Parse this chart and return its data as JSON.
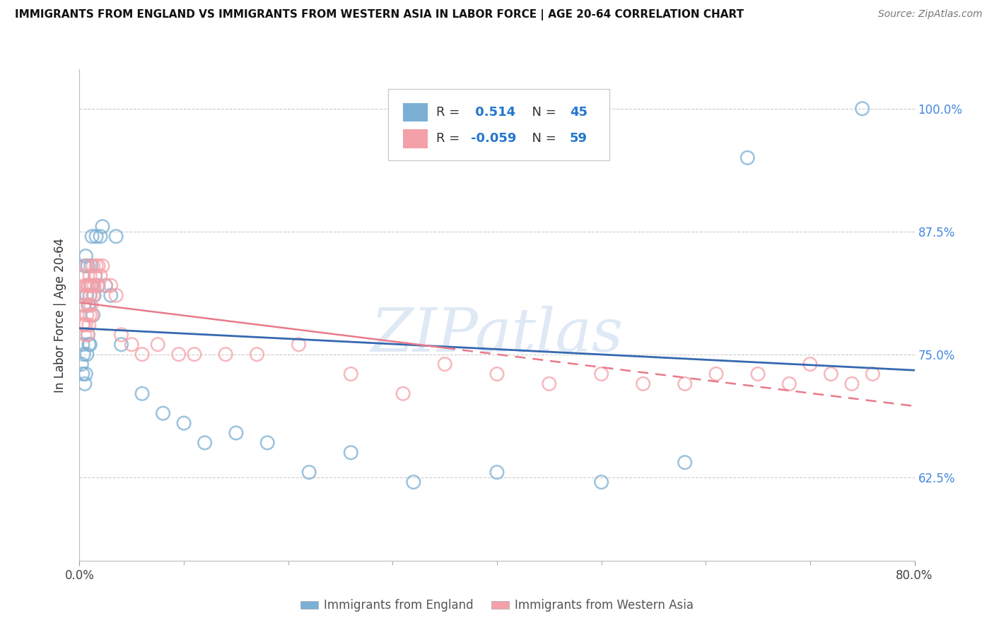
{
  "title": "IMMIGRANTS FROM ENGLAND VS IMMIGRANTS FROM WESTERN ASIA IN LABOR FORCE | AGE 20-64 CORRELATION CHART",
  "source": "Source: ZipAtlas.com",
  "ylabel": "In Labor Force | Age 20-64",
  "ytick_vals": [
    0.625,
    0.75,
    0.875,
    1.0
  ],
  "ytick_labels": [
    "62.5%",
    "75.0%",
    "87.5%",
    "100.0%"
  ],
  "england_color": "#7BAFD4",
  "western_color": "#F4A0A8",
  "england_line_color": "#3568B0",
  "western_line_color": "#E87A8A",
  "watermark": "ZIPatlas",
  "xmin": 0.0,
  "xmax": 0.8,
  "ymin": 0.54,
  "ymax": 1.04,
  "eng_x": [
    0.002,
    0.003,
    0.003,
    0.004,
    0.004,
    0.005,
    0.005,
    0.006,
    0.006,
    0.007,
    0.007,
    0.008,
    0.008,
    0.009,
    0.009,
    0.01,
    0.01,
    0.011,
    0.011,
    0.012,
    0.013,
    0.014,
    0.015,
    0.016,
    0.018,
    0.02,
    0.022,
    0.025,
    0.03,
    0.035,
    0.04,
    0.06,
    0.08,
    0.1,
    0.12,
    0.15,
    0.18,
    0.22,
    0.26,
    0.32,
    0.4,
    0.5,
    0.58,
    0.64,
    0.75
  ],
  "eng_y": [
    0.74,
    0.73,
    0.76,
    0.75,
    0.8,
    0.72,
    0.84,
    0.73,
    0.85,
    0.81,
    0.75,
    0.84,
    0.77,
    0.76,
    0.8,
    0.81,
    0.76,
    0.82,
    0.84,
    0.87,
    0.79,
    0.81,
    0.83,
    0.87,
    0.82,
    0.87,
    0.88,
    0.82,
    0.81,
    0.87,
    0.76,
    0.71,
    0.69,
    0.68,
    0.66,
    0.67,
    0.66,
    0.63,
    0.65,
    0.62,
    0.63,
    0.62,
    0.64,
    0.95,
    1.0
  ],
  "west_x": [
    0.003,
    0.004,
    0.004,
    0.005,
    0.005,
    0.005,
    0.006,
    0.006,
    0.007,
    0.007,
    0.007,
    0.008,
    0.008,
    0.008,
    0.009,
    0.009,
    0.01,
    0.01,
    0.01,
    0.011,
    0.011,
    0.012,
    0.012,
    0.013,
    0.013,
    0.014,
    0.015,
    0.016,
    0.017,
    0.018,
    0.02,
    0.022,
    0.025,
    0.03,
    0.035,
    0.04,
    0.05,
    0.06,
    0.075,
    0.095,
    0.11,
    0.14,
    0.17,
    0.21,
    0.26,
    0.31,
    0.35,
    0.4,
    0.45,
    0.5,
    0.54,
    0.58,
    0.61,
    0.65,
    0.68,
    0.7,
    0.72,
    0.74,
    0.76
  ],
  "west_y": [
    0.78,
    0.78,
    0.83,
    0.77,
    0.8,
    0.82,
    0.78,
    0.81,
    0.79,
    0.82,
    0.84,
    0.77,
    0.8,
    0.82,
    0.78,
    0.82,
    0.79,
    0.81,
    0.83,
    0.8,
    0.82,
    0.79,
    0.82,
    0.81,
    0.84,
    0.82,
    0.83,
    0.84,
    0.82,
    0.84,
    0.83,
    0.84,
    0.82,
    0.82,
    0.81,
    0.77,
    0.76,
    0.75,
    0.76,
    0.75,
    0.75,
    0.75,
    0.75,
    0.76,
    0.73,
    0.71,
    0.74,
    0.73,
    0.72,
    0.73,
    0.72,
    0.72,
    0.73,
    0.73,
    0.72,
    0.74,
    0.73,
    0.72,
    0.73
  ]
}
